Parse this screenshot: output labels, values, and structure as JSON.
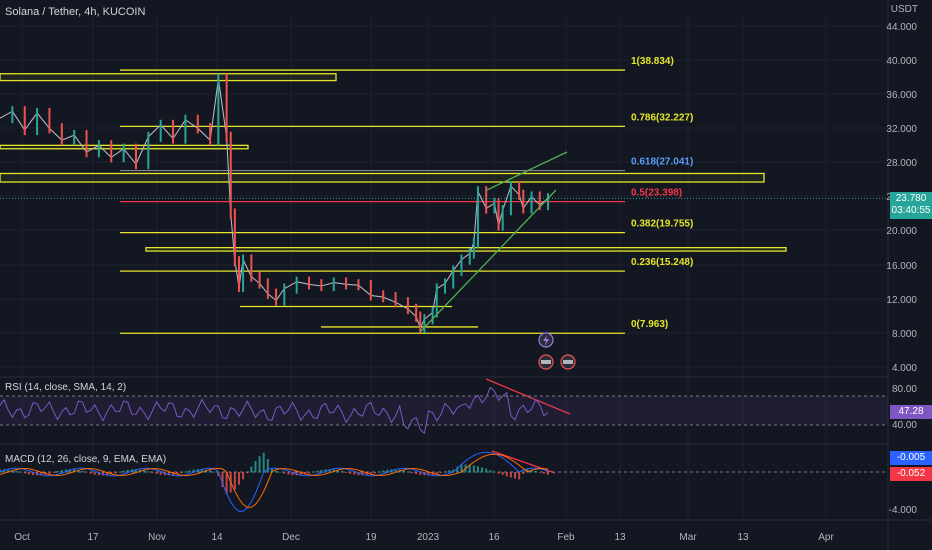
{
  "header": {
    "symbol": "Solana / Tether, 4h, KUCOIN",
    "currency": "USDT"
  },
  "colors": {
    "background": "#131722",
    "candle_up": "#26a69a",
    "candle_down": "#ef5350",
    "level": "#e6e629",
    "fib_mid": "#f23645",
    "fib_618": "#5b9cf6",
    "rsi_line": "#7e57c2",
    "macd_line": "#2962ff",
    "signal_line": "#ff6d00",
    "trend_green": "#4caf50",
    "trend_red": "#f23645"
  },
  "chart_data": {
    "type": "line",
    "title": "Solana / Tether, 4h, KUCOIN",
    "price_axis": {
      "unit": "USDT",
      "ticks": [
        "44.000",
        "40.000",
        "36.000",
        "32.000",
        "28.000",
        "24.000",
        "20.000",
        "16.000",
        "12.000",
        "8.000",
        "4.000"
      ],
      "range": [
        3.5,
        44.5
      ]
    },
    "time_axis": {
      "ticks": [
        "Oct",
        "17",
        "Nov",
        "14",
        "Dec",
        "19",
        "2023",
        "16",
        "Feb",
        "13",
        "Mar",
        "13",
        "Apr"
      ]
    },
    "price_series": {
      "name": "SOL/USDT",
      "x_range": [
        "2022-09-27",
        "2023-01-26"
      ],
      "points": [
        [
          0,
          33.2
        ],
        [
          3,
          34.0
        ],
        [
          6,
          31.8
        ],
        [
          9,
          33.8
        ],
        [
          12,
          32.0
        ],
        [
          15,
          30.6
        ],
        [
          18,
          31.2
        ],
        [
          21,
          29.2
        ],
        [
          24,
          30.0
        ],
        [
          27,
          28.6
        ],
        [
          30,
          29.6
        ],
        [
          33,
          27.8
        ],
        [
          36,
          31.0
        ],
        [
          39,
          32.4
        ],
        [
          42,
          30.8
        ],
        [
          45,
          33.0
        ],
        [
          48,
          32.0
        ],
        [
          51,
          30.6
        ],
        [
          53,
          37.8
        ],
        [
          55,
          31.0
        ],
        [
          56,
          22.0
        ],
        [
          57,
          16.4
        ],
        [
          58,
          13.4
        ],
        [
          59,
          16.6
        ],
        [
          61,
          14.6
        ],
        [
          63,
          13.8
        ],
        [
          65,
          12.6
        ],
        [
          67,
          11.8
        ],
        [
          69,
          13.2
        ],
        [
          72,
          14.0
        ],
        [
          75,
          13.7
        ],
        [
          78,
          13.5
        ],
        [
          81,
          13.9
        ],
        [
          84,
          13.7
        ],
        [
          87,
          13.6
        ],
        [
          90,
          12.4
        ],
        [
          93,
          12.2
        ],
        [
          96,
          11.6
        ],
        [
          99,
          10.8
        ],
        [
          101,
          9.9
        ],
        [
          102,
          8.6
        ],
        [
          103,
          9.6
        ],
        [
          105,
          10.4
        ],
        [
          106,
          13.2
        ],
        [
          108,
          13.8
        ],
        [
          110,
          15.3
        ],
        [
          112,
          16.6
        ],
        [
          114,
          17.3
        ],
        [
          115,
          18.6
        ],
        [
          116,
          24.6
        ],
        [
          118,
          22.6
        ],
        [
          120,
          23.2
        ],
        [
          121,
          20.6
        ],
        [
          122,
          22.4
        ],
        [
          124,
          25.2
        ],
        [
          126,
          24.2
        ],
        [
          127,
          22.6
        ],
        [
          129,
          24.0
        ],
        [
          131,
          23.0
        ],
        [
          133,
          23.8
        ]
      ]
    },
    "horizontal_levels": [
      {
        "price": 38.83
      },
      {
        "price": 32.23
      },
      {
        "price": 27.04
      },
      {
        "price": 23.4
      },
      {
        "price": 19.76
      },
      {
        "price": 15.25
      },
      {
        "price": 7.96
      },
      {
        "price": 11.1
      },
      {
        "price": 8.7
      }
    ],
    "zones": [
      {
        "low": 37.6,
        "high": 38.4
      },
      {
        "low": 29.6,
        "high": 30.0
      },
      {
        "low": 25.7,
        "high": 26.7
      },
      {
        "low": 17.6,
        "high": 18.0
      }
    ],
    "fib_levels": [
      {
        "label": "1(38.834)",
        "price": 38.834
      },
      {
        "label": "0.786(32.227)",
        "price": 32.227
      },
      {
        "label": "0.618(27.041)",
        "price": 27.041
      },
      {
        "label": "0.5(23.398)",
        "price": 23.398
      },
      {
        "label": "0.382(19.755)",
        "price": 19.755
      },
      {
        "label": "0.236(15.248)",
        "price": 15.248
      },
      {
        "label": "0(7.963)",
        "price": 7.963
      }
    ],
    "last_price": 23.78,
    "last_price_label": "23.780",
    "countdown": "03:40:55",
    "rsi": {
      "label": "RSI (14, close, SMA, 14, 2)",
      "ticks": [
        "80.00",
        "40.00"
      ],
      "band": [
        30,
        70
      ],
      "value": 47.28,
      "value_label": "47.28"
    },
    "macd": {
      "label": "MACD (12, 26, close, 9, EMA, EMA)",
      "ticks": [
        "-4.000"
      ],
      "macd_value": "-0.005",
      "signal_value": "-0.052"
    }
  }
}
